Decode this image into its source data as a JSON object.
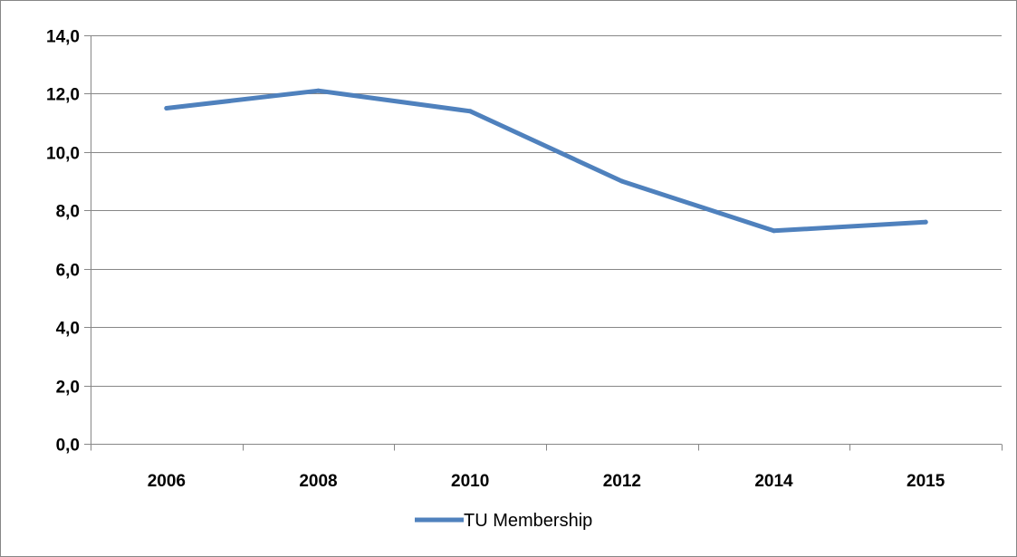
{
  "chart_data": {
    "type": "line",
    "title": "",
    "xlabel": "",
    "ylabel": "",
    "categories": [
      "2006",
      "2008",
      "2010",
      "2012",
      "2014",
      "2015"
    ],
    "series": [
      {
        "name": "TU Membership",
        "values": [
          11.5,
          12.1,
          11.4,
          9.0,
          7.3,
          7.6
        ],
        "color": "#4f81bd"
      }
    ],
    "ylim": [
      0,
      14
    ],
    "y_ticks": [
      "0,0",
      "2,0",
      "4,0",
      "6,0",
      "8,0",
      "10,0",
      "12,0",
      "14,0"
    ],
    "y_tick_values": [
      0,
      2,
      4,
      6,
      8,
      10,
      12,
      14
    ],
    "grid": true,
    "legend_position": "bottom",
    "colors": {
      "gridline": "#878787",
      "axis": "#878787",
      "frame": "#878787"
    }
  }
}
